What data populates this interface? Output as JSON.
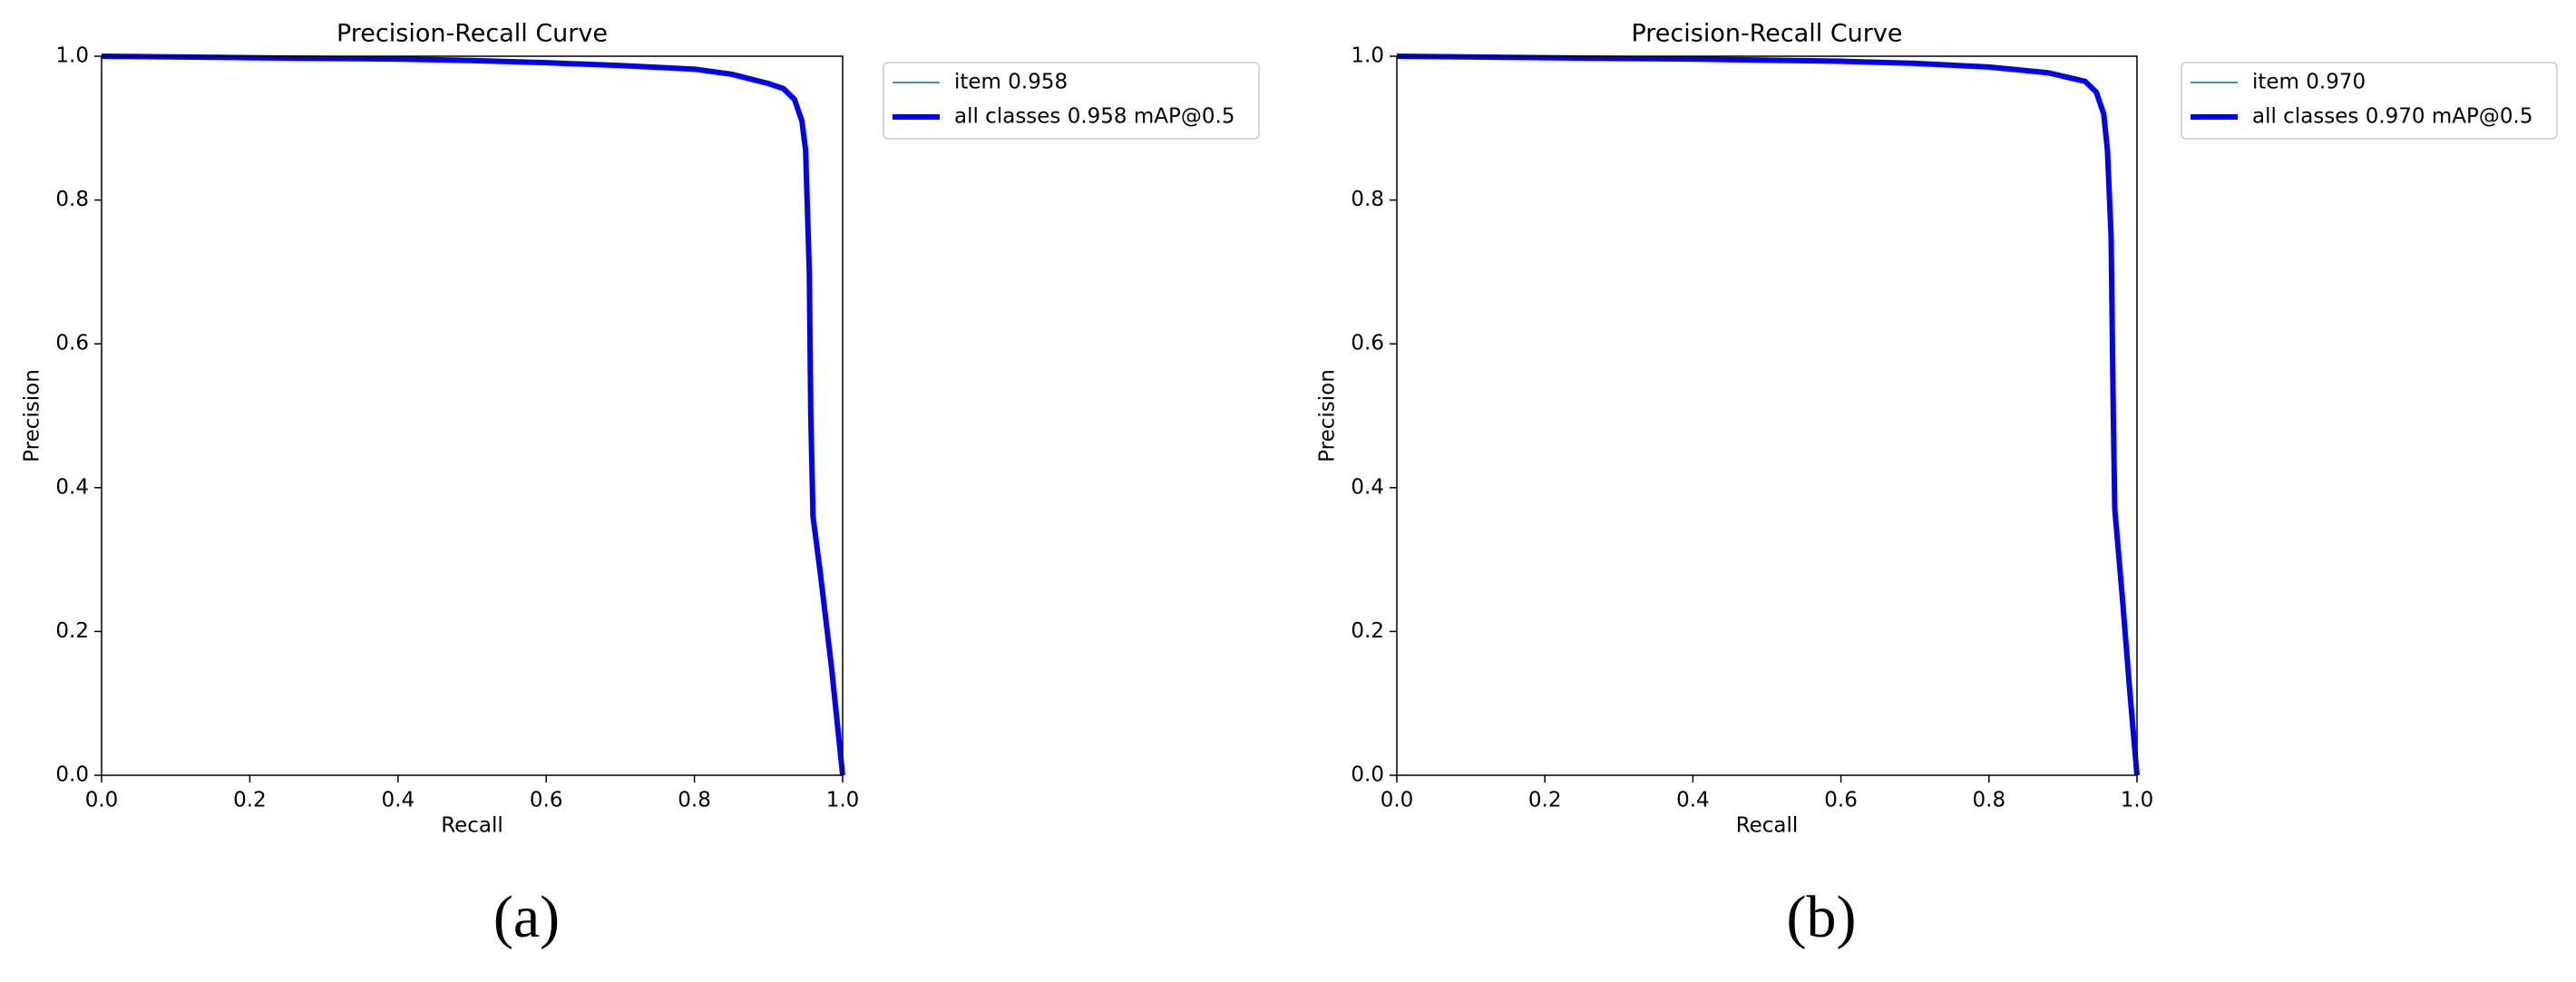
{
  "chart_data": [
    {
      "type": "line",
      "title": "Precision-Recall Curve",
      "xlabel": "Recall",
      "ylabel": "Precision",
      "panel_label": "(a)",
      "x": [
        0,
        0.2,
        0.4,
        0.5,
        0.6,
        0.7,
        0.8,
        0.85,
        0.9,
        0.92,
        0.935,
        0.945,
        0.95,
        0.955,
        0.957,
        0.96,
        0.97,
        0.985,
        1.0
      ],
      "series": [
        {
          "name": "item 0.958",
          "color": "#3a8fd8",
          "linewidth": 2,
          "values": [
            1,
            0.998,
            0.996,
            0.994,
            0.991,
            0.987,
            0.982,
            0.975,
            0.962,
            0.955,
            0.94,
            0.91,
            0.87,
            0.7,
            0.5,
            0.36,
            0.28,
            0.15,
            0
          ]
        },
        {
          "name": "all classes 0.958 mAP@0.5",
          "color": "#0000ff",
          "linewidth": 6,
          "values": [
            1,
            0.998,
            0.996,
            0.994,
            0.991,
            0.987,
            0.982,
            0.975,
            0.962,
            0.955,
            0.94,
            0.91,
            0.87,
            0.7,
            0.5,
            0.36,
            0.28,
            0.15,
            0
          ]
        }
      ],
      "xlim": [
        0,
        1
      ],
      "ylim": [
        0,
        1
      ],
      "xticks": [
        {
          "value": 0,
          "label": "0.0"
        },
        0.2,
        0.4,
        0.6,
        0.8,
        {
          "value": 1,
          "label": "1.0"
        }
      ],
      "yticks": [
        {
          "value": 0,
          "label": "0.0"
        },
        0.2,
        0.4,
        0.6,
        0.8,
        {
          "value": 1,
          "label": "1.0"
        }
      ],
      "legend": "outside-right",
      "grid": false
    },
    {
      "type": "line",
      "title": "Precision-Recall Curve",
      "xlabel": "Recall",
      "ylabel": "Precision",
      "panel_label": "(b)",
      "x": [
        0,
        0.2,
        0.4,
        0.6,
        0.7,
        0.8,
        0.88,
        0.93,
        0.945,
        0.955,
        0.96,
        0.965,
        0.968,
        0.97,
        0.98,
        0.99,
        1.0
      ],
      "series": [
        {
          "name": "item 0.970",
          "color": "#3a8fd8",
          "linewidth": 2,
          "values": [
            1,
            0.998,
            0.996,
            0.993,
            0.99,
            0.985,
            0.977,
            0.965,
            0.95,
            0.92,
            0.87,
            0.75,
            0.5,
            0.37,
            0.25,
            0.12,
            0
          ]
        },
        {
          "name": "all classes 0.970 mAP@0.5",
          "color": "#0000ff",
          "linewidth": 6,
          "values": [
            1,
            0.998,
            0.996,
            0.993,
            0.99,
            0.985,
            0.977,
            0.965,
            0.95,
            0.92,
            0.87,
            0.75,
            0.5,
            0.37,
            0.25,
            0.12,
            0
          ]
        }
      ],
      "xlim": [
        0,
        1
      ],
      "ylim": [
        0,
        1
      ],
      "xticks": [
        {
          "value": 0,
          "label": "0.0"
        },
        0.2,
        0.4,
        0.6,
        0.8,
        {
          "value": 1,
          "label": "1.0"
        }
      ],
      "yticks": [
        {
          "value": 0,
          "label": "0.0"
        },
        0.2,
        0.4,
        0.6,
        0.8,
        {
          "value": 1,
          "label": "1.0"
        }
      ],
      "legend": "outside-right",
      "grid": false
    }
  ]
}
